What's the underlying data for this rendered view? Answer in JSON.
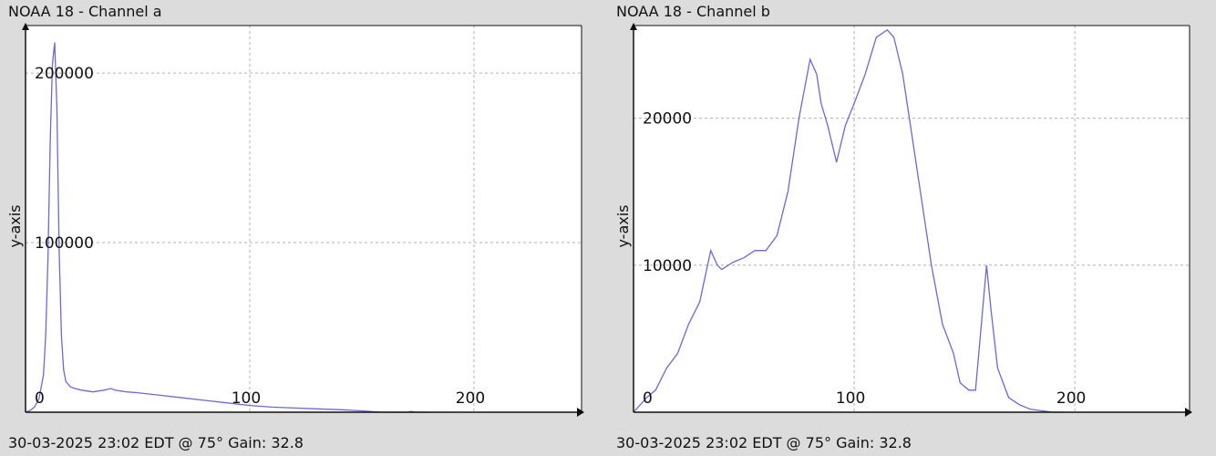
{
  "panels": [
    {
      "title": "NOAA 18 - Channel a",
      "footer": "30-03-2025 23:02 EDT @ 75° Gain: 32.8"
    },
    {
      "title": "NOAA 18 - Channel b",
      "footer": "30-03-2025 23:02 EDT @ 75° Gain: 32.8"
    }
  ],
  "colors": {
    "line": "#6a6ad0",
    "grid": "#b0b0b0",
    "plot_bg": "#ffffff",
    "page_bg": "#dcdcdc",
    "axis": "#111111"
  },
  "chart_data": [
    {
      "type": "line",
      "title": "NOAA 18 - Channel a",
      "xlabel": "",
      "ylabel": "y-axis",
      "xlim": [
        0,
        248
      ],
      "ylim": [
        0,
        228000
      ],
      "x_ticks": [
        0,
        100,
        200
      ],
      "y_ticks": [
        100000,
        200000
      ],
      "grid": true,
      "series": [
        {
          "x": [
            0,
            2,
            4,
            6,
            8,
            9,
            10,
            11,
            12,
            13,
            14,
            15,
            16,
            17,
            18,
            20,
            22,
            25,
            30,
            35,
            38,
            40,
            45,
            50,
            60,
            70,
            80,
            90,
            100,
            110,
            120,
            130,
            140,
            150,
            155,
            160,
            165,
            170,
            172,
            174,
            180
          ],
          "y": [
            0,
            1000,
            3000,
            8000,
            22000,
            45000,
            90000,
            160000,
            205000,
            218000,
            180000,
            95000,
            45000,
            25000,
            18000,
            15000,
            14000,
            13000,
            12000,
            13000,
            14000,
            13000,
            12000,
            11500,
            10000,
            8500,
            7000,
            5500,
            4000,
            3000,
            2500,
            2000,
            1500,
            800,
            300,
            0,
            0,
            0,
            500,
            0,
            0
          ]
        }
      ]
    },
    {
      "type": "line",
      "title": "NOAA 18 - Channel b",
      "xlabel": "",
      "ylabel": "y-axis",
      "xlim": [
        0,
        252
      ],
      "ylim": [
        0,
        26300
      ],
      "x_ticks": [
        0,
        100,
        200
      ],
      "y_ticks": [
        10000,
        20000
      ],
      "grid": true,
      "series": [
        {
          "x": [
            0,
            3,
            6,
            10,
            15,
            20,
            25,
            30,
            35,
            38,
            40,
            45,
            50,
            55,
            60,
            65,
            70,
            75,
            80,
            83,
            85,
            88,
            92,
            96,
            100,
            105,
            110,
            115,
            118,
            122,
            125,
            130,
            135,
            140,
            145,
            148,
            152,
            155,
            160,
            162,
            165,
            170,
            175,
            180,
            185,
            190,
            195
          ],
          "y": [
            0,
            500,
            1000,
            1500,
            3000,
            4000,
            6000,
            7500,
            11000,
            10000,
            9700,
            10200,
            10500,
            11000,
            11000,
            12000,
            15000,
            20000,
            24000,
            23000,
            21000,
            19500,
            17000,
            19500,
            21000,
            23000,
            25500,
            26000,
            25500,
            23000,
            20000,
            15000,
            10000,
            6000,
            4000,
            2000,
            1500,
            1500,
            10000,
            7000,
            3000,
            1000,
            500,
            200,
            100,
            0,
            0
          ]
        }
      ]
    }
  ]
}
